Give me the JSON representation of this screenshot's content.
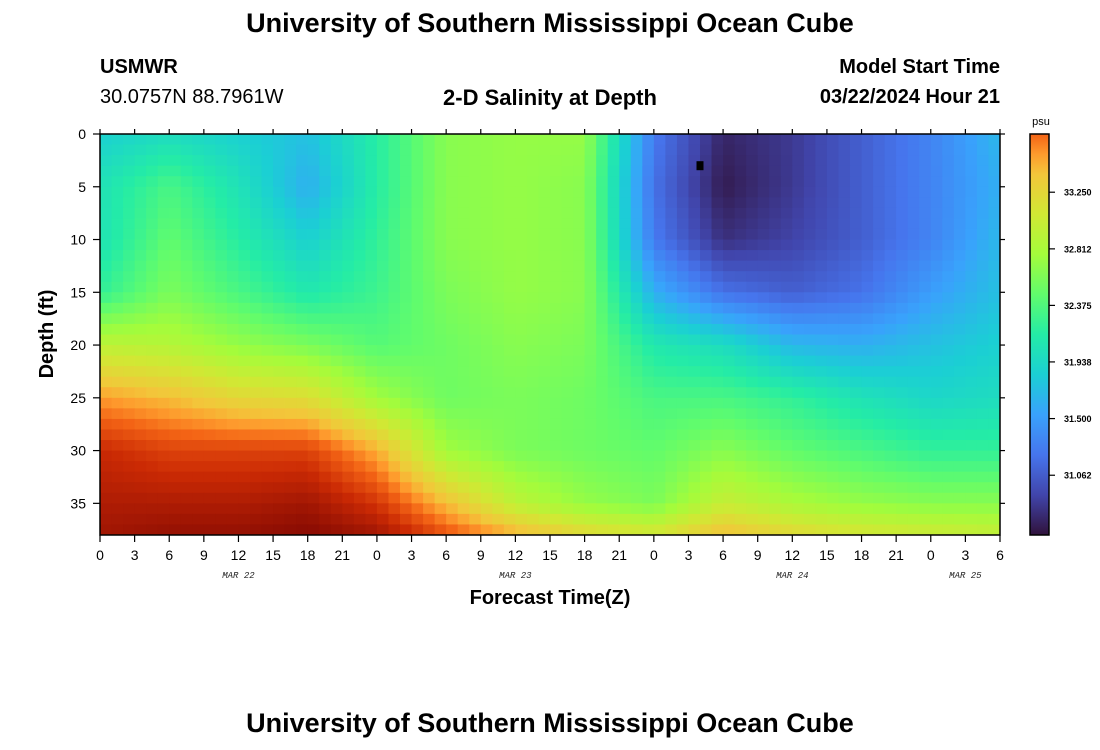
{
  "header": {
    "title": "University of Southern Mississippi Ocean Cube",
    "station_name": "USMWR",
    "station_coords": "30.0757N  88.7961W",
    "subtitle": "2-D Salinity at Depth",
    "model_start_label": "Model Start Time",
    "model_start_value": "03/22/2024 Hour 21"
  },
  "footer": {
    "title": "University of Southern Mississippi Ocean Cube"
  },
  "chart_data": {
    "type": "heatmap",
    "title": "2-D Salinity at Depth",
    "xlabel": "Forecast Time(Z)",
    "ylabel": "Depth (ft)",
    "xlim_hours": [
      0,
      78
    ],
    "ylim_ft": [
      0,
      38
    ],
    "x_tick_hours": [
      0,
      3,
      6,
      9,
      12,
      15,
      18,
      21,
      24,
      27,
      30,
      33,
      36,
      39,
      42,
      45,
      48,
      51,
      54,
      57,
      60,
      63,
      66,
      69,
      72,
      75,
      78
    ],
    "x_tick_labels": [
      "0",
      "3",
      "6",
      "9",
      "12",
      "15",
      "18",
      "21",
      "0",
      "3",
      "6",
      "9",
      "12",
      "15",
      "18",
      "21",
      "0",
      "3",
      "6",
      "9",
      "12",
      "15",
      "18",
      "21",
      "0",
      "3",
      "6"
    ],
    "day_labels": [
      {
        "label": "MAR 22",
        "hour": 12
      },
      {
        "label": "MAR 23",
        "hour": 36
      },
      {
        "label": "MAR 24",
        "hour": 60
      },
      {
        "label": "MAR 25",
        "hour": 75
      }
    ],
    "y_ticks": [
      0,
      5,
      10,
      15,
      20,
      25,
      30,
      35
    ],
    "y_tick_labels": [
      "0",
      "5",
      "10",
      "15",
      "20",
      "25",
      "30",
      "35"
    ],
    "colorbar": {
      "unit": "psu",
      "min": 30.6,
      "max": 33.7,
      "ticks": [
        33.25,
        32.812,
        32.375,
        31.938,
        31.5,
        31.062
      ],
      "tick_labels": [
        "33.250",
        "32.812",
        "32.375",
        "31.938",
        "31.500",
        "31.062"
      ]
    },
    "salinity_grid": {
      "hours": [
        0,
        6,
        12,
        18,
        24,
        30,
        36,
        42,
        48,
        54,
        60,
        66,
        72,
        78
      ],
      "depths_ft": [
        0,
        5,
        10,
        15,
        20,
        25,
        30,
        35,
        38
      ],
      "values": [
        [
          31.65,
          31.75,
          31.65,
          31.55,
          31.9,
          32.3,
          32.35,
          32.35,
          31.15,
          30.7,
          30.8,
          31.0,
          31.2,
          31.5
        ],
        [
          31.8,
          32.05,
          31.8,
          31.45,
          31.9,
          32.3,
          32.35,
          32.3,
          31.1,
          30.65,
          30.8,
          31.0,
          31.2,
          31.45
        ],
        [
          31.8,
          32.15,
          31.9,
          31.65,
          31.95,
          32.3,
          32.35,
          32.3,
          31.15,
          30.75,
          30.85,
          31.0,
          31.2,
          31.5
        ],
        [
          31.95,
          32.25,
          32.05,
          31.85,
          32.0,
          32.25,
          32.35,
          32.3,
          31.45,
          31.1,
          31.0,
          31.1,
          31.35,
          31.55
        ],
        [
          32.55,
          32.5,
          32.35,
          32.25,
          32.1,
          32.2,
          32.3,
          32.25,
          31.85,
          31.75,
          31.5,
          31.45,
          31.55,
          31.65
        ],
        [
          33.05,
          32.95,
          32.8,
          32.75,
          32.4,
          32.2,
          32.25,
          32.2,
          32.05,
          32.05,
          31.95,
          31.8,
          31.7,
          31.75
        ],
        [
          33.4,
          33.3,
          33.3,
          33.3,
          33.0,
          32.4,
          32.25,
          32.2,
          32.15,
          32.3,
          32.15,
          32.05,
          31.95,
          31.95
        ],
        [
          33.5,
          33.5,
          33.5,
          33.55,
          33.35,
          32.95,
          32.55,
          32.35,
          32.25,
          32.6,
          32.45,
          32.35,
          32.3,
          32.3
        ],
        [
          33.55,
          33.6,
          33.6,
          33.65,
          33.55,
          33.25,
          33.0,
          32.8,
          32.7,
          32.95,
          32.8,
          32.7,
          32.65,
          32.6
        ]
      ]
    },
    "marker": {
      "hour": 52,
      "depth_ft": 3
    }
  }
}
